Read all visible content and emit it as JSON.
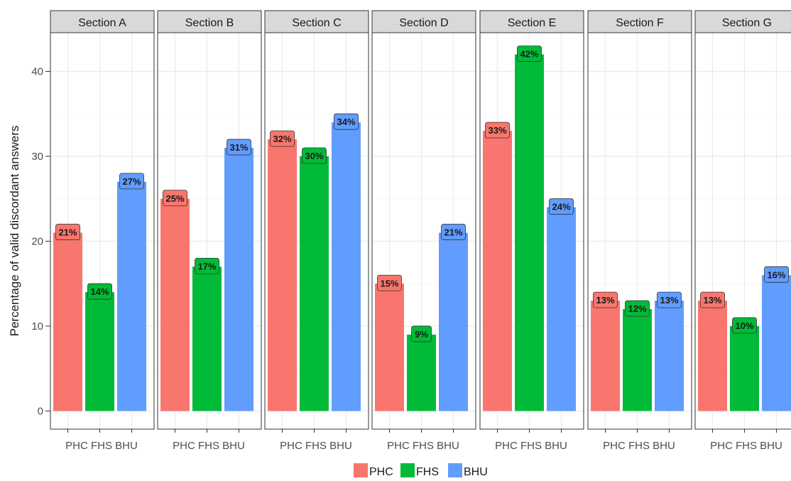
{
  "chart_data": {
    "type": "bar",
    "ylabel": "Percentage of valid discordant answers",
    "xlabel": "",
    "ylim": [
      0,
      45
    ],
    "yticks": [
      0,
      10,
      20,
      30,
      40
    ],
    "grid": true,
    "legend_position": "bottom",
    "categories": [
      "PHC",
      "FHS",
      "BHU"
    ],
    "category_axis_label": "PHC FHS BHU",
    "colors": {
      "PHC": "#f8766d",
      "FHS": "#00ba38",
      "BHU": "#619cff"
    },
    "panels": [
      {
        "name": "Section A",
        "values": [
          21,
          14,
          27
        ],
        "labels": [
          "21%",
          "14%",
          "27%"
        ]
      },
      {
        "name": "Section B",
        "values": [
          25,
          17,
          31
        ],
        "labels": [
          "25%",
          "17%",
          "31%"
        ]
      },
      {
        "name": "Section C",
        "values": [
          32,
          30,
          34
        ],
        "labels": [
          "32%",
          "30%",
          "34%"
        ]
      },
      {
        "name": "Section D",
        "values": [
          15,
          9,
          21
        ],
        "labels": [
          "15%",
          "9%",
          "21%"
        ]
      },
      {
        "name": "Section E",
        "values": [
          33,
          42,
          24
        ],
        "labels": [
          "33%",
          "42%",
          "24%"
        ]
      },
      {
        "name": "Section F",
        "values": [
          13,
          12,
          13
        ],
        "labels": [
          "13%",
          "12%",
          "13%"
        ]
      },
      {
        "name": "Section G",
        "values": [
          13,
          10,
          16
        ],
        "labels": [
          "13%",
          "10%",
          "16%"
        ]
      }
    ],
    "legend": [
      {
        "key": "PHC",
        "label": "PHC"
      },
      {
        "key": "FHS",
        "label": "FHS"
      },
      {
        "key": "BHU",
        "label": "BHU"
      }
    ]
  }
}
